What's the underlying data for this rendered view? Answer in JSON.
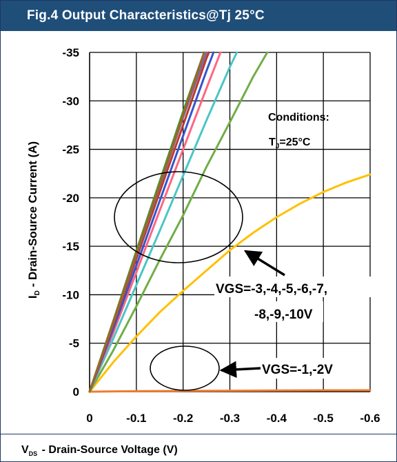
{
  "header": {
    "title": "Fig.4 Output Characteristics@Tj 25°C"
  },
  "chart_data": {
    "type": "line",
    "title": "Fig.4 Output Characteristics@Tj 25°C",
    "xlabel": "VDS - Drain-Source Voltage (V)",
    "xlabel_parts": {
      "main": "V",
      "sub": "DS",
      "rest": " - Drain-Source Voltage (V)"
    },
    "ylabel": "ID - Drain-Source Current (A)",
    "ylabel_parts": {
      "main": "I",
      "sub": "D",
      "rest": " - Drain-Source Current (A)"
    },
    "xlim": [
      0,
      -0.6
    ],
    "ylim": [
      0,
      -35
    ],
    "x_ticks": [
      0,
      -0.1,
      -0.2,
      -0.3,
      -0.4,
      -0.5,
      -0.6
    ],
    "x_tick_labels": [
      "0",
      "-0.1",
      "-0.2",
      "-0.3",
      "-0.4",
      "-0.5",
      "-0.6"
    ],
    "y_ticks": [
      0,
      -5,
      -10,
      -15,
      -20,
      -25,
      -30,
      -35
    ],
    "y_tick_labels": [
      "0",
      "-5",
      "-10",
      "-15",
      "-20",
      "-25",
      "-30",
      "-35"
    ],
    "grid": true,
    "series": [
      {
        "color": "#ed7d31",
        "x": [
          0,
          -0.1,
          -0.2,
          -0.3,
          -0.4,
          -0.5,
          -0.6
        ],
        "y": [
          0,
          -0.05,
          -0.08,
          -0.1,
          -0.12,
          -0.14,
          -0.15
        ]
      },
      {
        "color": "#ffc000",
        "x": [
          0,
          -0.05,
          -0.1,
          -0.15,
          -0.2,
          -0.25,
          -0.3,
          -0.35,
          -0.4,
          -0.45,
          -0.5,
          -0.55,
          -0.6
        ],
        "y": [
          0,
          -3.0,
          -5.7,
          -8.2,
          -10.4,
          -12.5,
          -14.6,
          -16.4,
          -18.0,
          -19.4,
          -20.6,
          -21.6,
          -22.4
        ]
      },
      {
        "color": "#70ad47",
        "x": [
          0,
          -0.05,
          -0.1,
          -0.15,
          -0.2,
          -0.25,
          -0.3,
          -0.35,
          -0.38
        ],
        "y": [
          0,
          -4.2,
          -8.8,
          -13.6,
          -18.2,
          -23.2,
          -27.8,
          -32.5,
          -35
        ]
      },
      {
        "color": "#4bc5c5",
        "x": [
          0,
          -0.05,
          -0.1,
          -0.15,
          -0.2,
          -0.25,
          -0.3,
          -0.315
        ],
        "y": [
          0,
          -5.4,
          -11.0,
          -16.6,
          -22.3,
          -28.0,
          -33.5,
          -35
        ]
      },
      {
        "color": "#ff6680",
        "x": [
          0,
          -0.05,
          -0.1,
          -0.15,
          -0.2,
          -0.25,
          -0.28
        ],
        "y": [
          0,
          -6.0,
          -12.3,
          -18.7,
          -25.0,
          -31.3,
          -35
        ]
      },
      {
        "color": "#3355cc",
        "x": [
          0,
          -0.05,
          -0.1,
          -0.15,
          -0.2,
          -0.25,
          -0.265
        ],
        "y": [
          0,
          -6.4,
          -13.0,
          -19.7,
          -26.4,
          -33.1,
          -35
        ]
      },
      {
        "color": "#c0392b",
        "x": [
          0,
          -0.05,
          -0.1,
          -0.15,
          -0.2,
          -0.25,
          -0.255
        ],
        "y": [
          0,
          -6.8,
          -13.7,
          -20.6,
          -27.5,
          -34.4,
          -35
        ]
      },
      {
        "color": "#8064a2",
        "x": [
          0,
          -0.05,
          -0.1,
          -0.15,
          -0.2,
          -0.25
        ],
        "y": [
          0,
          -7.0,
          -14.1,
          -21.2,
          -28.3,
          -35
        ]
      },
      {
        "color": "#3a9a3a",
        "x": [
          0,
          -0.05,
          -0.1,
          -0.15,
          -0.2,
          -0.245
        ],
        "y": [
          0,
          -7.2,
          -14.5,
          -21.7,
          -28.9,
          -35
        ]
      },
      {
        "color": "#9a6a20",
        "x": [
          0,
          -0.05,
          -0.1,
          -0.15,
          -0.2,
          -0.245
        ],
        "y": [
          0,
          -7.1,
          -14.3,
          -21.4,
          -28.6,
          -35
        ]
      }
    ],
    "annotations": {
      "conditions_line1": "Conditions:",
      "conditions_main": "T",
      "conditions_sub": "J",
      "conditions_rest": "=25°C",
      "vgs_high_line1": "VGS=-3,-4,-5,-6,-7,",
      "vgs_high_line2": "-8,-9,-10V",
      "vgs_low": "VGS=-1,-2V"
    }
  }
}
